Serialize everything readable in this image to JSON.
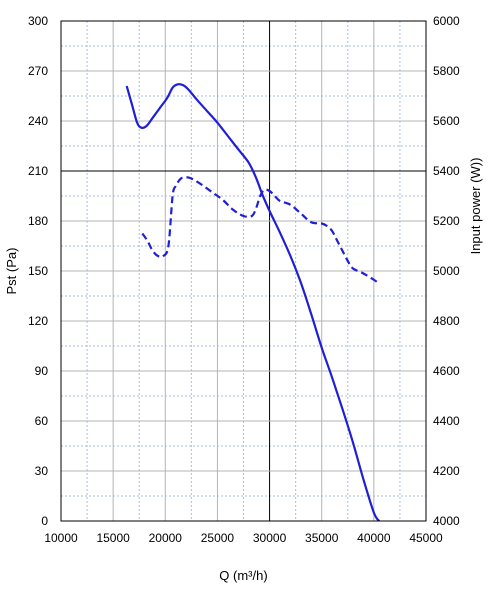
{
  "chart_data": {
    "type": "line",
    "xlabel": "Q (m³/h)",
    "ylabel": "Pst (Pa)",
    "y2label": "Input power  (W))",
    "xlim": [
      10000,
      45000
    ],
    "ylim": [
      0,
      300
    ],
    "y2lim": [
      4000,
      6000
    ],
    "x_ticks": [
      "10000",
      "15000",
      "20000",
      "25000",
      "30000",
      "35000",
      "40000",
      "45000"
    ],
    "y_ticks": [
      "0",
      "30",
      "60",
      "90",
      "120",
      "150",
      "180",
      "210",
      "240",
      "270",
      "300"
    ],
    "y2_ticks": [
      "4000",
      "4200",
      "4400",
      "4600",
      "4800",
      "5000",
      "5200",
      "5400",
      "5600",
      "5800",
      "6000"
    ],
    "grid": true,
    "series": [
      {
        "axis": "left",
        "style": "solid",
        "color": "#1f1fd6",
        "x": [
          16300,
          16800,
          17300,
          17700,
          18200,
          18800,
          19500,
          20200,
          20700,
          21200,
          21700,
          22200,
          23000,
          24000,
          25000,
          26000,
          27000,
          28000,
          28700,
          29300,
          30000,
          31000,
          32000,
          33000,
          34000,
          35000,
          36000,
          37000,
          38000,
          39000,
          40000,
          40500
        ],
        "y": [
          261,
          250,
          239,
          236,
          237,
          242,
          248,
          254,
          260,
          262,
          261.5,
          259,
          253,
          246,
          239,
          231,
          223,
          215,
          206,
          196,
          186,
          173,
          159,
          143,
          124,
          104,
          86,
          67,
          47,
          25,
          5,
          0
        ]
      },
      {
        "axis": "right",
        "style": "dashed",
        "color": "#1f1fd6",
        "x": [
          17800,
          18300,
          18800,
          19300,
          19800,
          20300,
          20700,
          21000,
          21500,
          22000,
          22500,
          23500,
          24500,
          25500,
          26500,
          27500,
          28300,
          28700,
          29100,
          29500,
          30000,
          30500,
          31000,
          32000,
          33000,
          34000,
          35000,
          35500,
          36000,
          36500,
          37000,
          37500,
          38000,
          39000,
          40000,
          40500
        ],
        "y": [
          5150,
          5120,
          5080,
          5060,
          5060,
          5100,
          5300,
          5340,
          5370,
          5375,
          5370,
          5345,
          5315,
          5285,
          5245,
          5220,
          5220,
          5250,
          5300,
          5325,
          5320,
          5300,
          5280,
          5265,
          5230,
          5195,
          5190,
          5180,
          5160,
          5120,
          5080,
          5040,
          5010,
          4990,
          4965,
          4950
        ]
      }
    ]
  }
}
